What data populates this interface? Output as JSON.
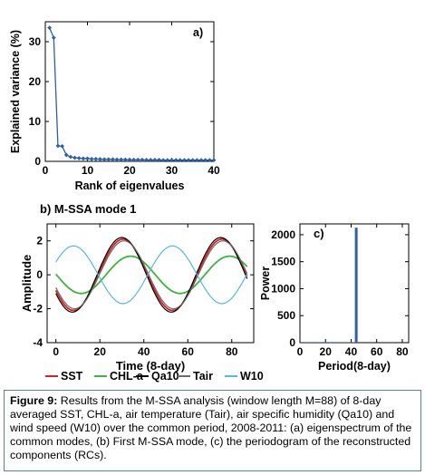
{
  "chart_data": [
    {
      "type": "line",
      "panel_label": "a)",
      "xlabel": "Rank of eigenvalues",
      "ylabel": "Explained variance (%)",
      "xlim": [
        0,
        40
      ],
      "ylim": [
        0,
        35
      ],
      "xticks": [
        0,
        10,
        20,
        30,
        40
      ],
      "yticks": [
        0,
        10,
        20,
        30
      ],
      "series": [
        {
          "color": "#2e5fa8",
          "marker": "diamond",
          "x": [
            1,
            2,
            3,
            4,
            5,
            6,
            7,
            8,
            9,
            10,
            11,
            12,
            13,
            14,
            15,
            16,
            17,
            18,
            19,
            20,
            21,
            22,
            23,
            24,
            25,
            26,
            27,
            28,
            29,
            30,
            31,
            32,
            33,
            34,
            35,
            36,
            37,
            38,
            39,
            40
          ],
          "y": [
            33.5,
            31.0,
            3.9,
            3.8,
            1.6,
            1.1,
            0.9,
            0.8,
            0.7,
            0.7,
            0.6,
            0.6,
            0.55,
            0.5,
            0.5,
            0.5,
            0.45,
            0.45,
            0.45,
            0.4,
            0.4,
            0.4,
            0.4,
            0.35,
            0.35,
            0.35,
            0.35,
            0.3,
            0.3,
            0.3,
            0.3,
            0.3,
            0.3,
            0.3,
            0.3,
            0.3,
            0.3,
            0.3,
            0.3,
            0.3
          ]
        }
      ]
    },
    {
      "type": "line",
      "panel_label": "b) M-SSA mode 1",
      "xlabel": "Time (8-day)",
      "ylabel": "Amplitude",
      "xlim": [
        -4,
        90
      ],
      "ylim": [
        -4,
        3
      ],
      "xticks": [
        0,
        20,
        40,
        60,
        80
      ],
      "yticks": [
        -4,
        -2,
        0,
        2
      ],
      "series": [
        {
          "name": "SST",
          "color": "#d32323",
          "amplitude": 2.1,
          "period": 45,
          "peak_x": 30.5,
          "x_range": [
            0,
            87
          ]
        },
        {
          "name": "CHL-a",
          "color": "#3fb23f",
          "amplitude": 1.1,
          "period": 45,
          "peak_x": 34,
          "x_range": [
            0,
            87
          ]
        },
        {
          "name": "Qa10",
          "color": "#000000",
          "amplitude": 2.2,
          "period": 45,
          "peak_x": 30,
          "x_range": [
            0,
            87
          ]
        },
        {
          "name": "Tair",
          "color": "#6b6b6b",
          "amplitude": 2.0,
          "period": 45,
          "peak_x": 31,
          "x_range": [
            0,
            87
          ]
        },
        {
          "name": "W10",
          "color": "#57b8e0",
          "amplitude": 1.7,
          "period": 45,
          "peak_x": 8,
          "x_range": [
            0,
            87
          ]
        }
      ]
    },
    {
      "type": "bar",
      "panel_label": "c)",
      "xlabel": "Period(8-day)",
      "ylabel": "Power",
      "xlim": [
        0,
        85
      ],
      "ylim": [
        0,
        2200
      ],
      "xticks": [
        0,
        20,
        40,
        60,
        80
      ],
      "yticks": [
        0,
        500,
        1000,
        1500,
        2000
      ],
      "bars": [
        {
          "x": 44,
          "value": 2130
        }
      ],
      "baseline_points": {
        "x": [
          1,
          2,
          3,
          4,
          5,
          6,
          7,
          8,
          9,
          10,
          11,
          12,
          13,
          14,
          15,
          16,
          17,
          18,
          19,
          20,
          21,
          22,
          23,
          24,
          25,
          26,
          27,
          28,
          29,
          30,
          31,
          32,
          33,
          34,
          35,
          36,
          37,
          38,
          39,
          40,
          41,
          42,
          43
        ],
        "value": 10
      },
      "color": "#2e5fa8"
    }
  ],
  "caption": {
    "figure_label": "Figure 9:",
    "text": "Results from the M-SSA analysis (window length M=88) of 8-day averaged SST, CHL-a, air temperature (Tair), air specific humidity (Qa10) and wind speed (W10) over the common period, 2008-2011: (a) eigenspectrum of the common modes, (b) First M-SSA mode, (c) the periodogram of the reconstructed components (RCs)."
  }
}
